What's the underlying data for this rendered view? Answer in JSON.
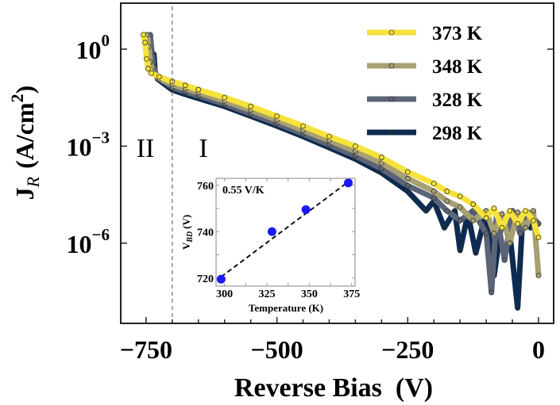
{
  "chart_data": [
    {
      "type": "line",
      "xlabel": "Reverse Bias  (V)",
      "ylabel": "J_R (A/cm^2)",
      "ylabel_parts": {
        "main": "J",
        "sub": "R",
        "units": "(A/cm",
        "sup": "2",
        "close": ")"
      },
      "xlim": [
        -775,
        30
      ],
      "ylim": [
        4e-09,
        25
      ],
      "yscale": "log",
      "xticks": [
        -750,
        -500,
        -250,
        0
      ],
      "xtick_labels": [
        "−750",
        "−500",
        "−250",
        "0"
      ],
      "yticks": [
        1,
        0.001,
        1e-06
      ],
      "ytick_labels": [
        {
          "base": "10",
          "exp": "0"
        },
        {
          "base": "10",
          "exp": "−3"
        },
        {
          "base": "10",
          "exp": "−6"
        }
      ],
      "legend_position": "top-right",
      "vline": {
        "x": -700,
        "style": "dashed",
        "color": "#8a8a8a"
      },
      "annotations": [
        "II",
        "I"
      ],
      "series": [
        {
          "name": "298 K",
          "color": "#0d2a50",
          "x": [
            -735,
            -733,
            -728,
            -700,
            -675,
            -650,
            -600,
            -550,
            -500,
            -450,
            -400,
            -350,
            -300,
            -250,
            -215,
            -200,
            -180,
            -160,
            -150,
            -135,
            -120,
            -100,
            -85,
            -70,
            -55,
            -40,
            -30,
            -15,
            0
          ],
          "y": [
            0.7,
            0.2,
            0.12,
            0.055,
            0.04,
            0.03,
            0.017,
            0.0085,
            0.0042,
            0.002,
            0.0009,
            0.0004,
            0.00015,
            4e-05,
            1e-05,
            2e-05,
            3e-06,
            1e-05,
            6e-07,
            8e-06,
            5e-07,
            9e-06,
            1e-07,
            5e-06,
            2e-06,
            1e-08,
            8e-06,
            3e-06,
            4e-06
          ]
        },
        {
          "name": "328 K",
          "color": "#5c6577",
          "x": [
            -742,
            -739,
            -736,
            -730,
            -700,
            -675,
            -650,
            -600,
            -550,
            -500,
            -450,
            -400,
            -350,
            -300,
            -250,
            -200,
            -175,
            -150,
            -125,
            -100,
            -90,
            -80,
            -65,
            -50,
            -35,
            -20,
            0
          ],
          "y": [
            2.8,
            0.8,
            0.3,
            0.15,
            0.065,
            0.048,
            0.036,
            0.02,
            0.01,
            0.005,
            0.0024,
            0.0011,
            0.0005,
            0.0002,
            6e-05,
            2.5e-05,
            1e-05,
            5e-06,
            1e-05,
            2e-06,
            3e-08,
            8e-06,
            3e-07,
            1e-05,
            2e-06,
            9e-06,
            4e-06
          ]
        },
        {
          "name": "348 K",
          "color": "#a89f72",
          "x": [
            -748,
            -745,
            -742,
            -738,
            -725,
            -700,
            -675,
            -650,
            -600,
            -550,
            -500,
            -450,
            -400,
            -350,
            -300,
            -250,
            -200,
            -175,
            -150,
            -125,
            -100,
            -85,
            -70,
            -55,
            -40,
            -25,
            -10,
            0
          ],
          "y": [
            2.8,
            1.2,
            0.4,
            0.2,
            0.12,
            0.08,
            0.06,
            0.045,
            0.025,
            0.013,
            0.0065,
            0.0031,
            0.0015,
            0.0007,
            0.0003,
            0.0001,
            4e-05,
            2e-05,
            1.3e-05,
            5e-06,
            1e-05,
            2e-06,
            8e-06,
            1e-06,
            9e-06,
            3e-06,
            1e-05,
            1e-07
          ]
        },
        {
          "name": "373 K",
          "color": "#f5e23a",
          "x": [
            -755,
            -752,
            -749,
            -746,
            -740,
            -725,
            -700,
            -675,
            -650,
            -600,
            -550,
            -500,
            -450,
            -400,
            -350,
            -300,
            -250,
            -200,
            -175,
            -150,
            -125,
            -100,
            -85,
            -70,
            -55,
            -40,
            -25,
            -10,
            0
          ],
          "y": [
            2.8,
            1.6,
            0.5,
            0.25,
            0.18,
            0.14,
            0.1,
            0.076,
            0.056,
            0.032,
            0.017,
            0.0085,
            0.0042,
            0.002,
            0.001,
            0.00045,
            0.00016,
            7e-05,
            4e-05,
            2.8e-05,
            1.6e-05,
            6e-06,
            1.2e-05,
            3e-06,
            1e-05,
            4e-06,
            1e-05,
            5e-06,
            1.5e-06
          ]
        }
      ],
      "legend_order": [
        "373 K",
        "348 K",
        "328 K",
        "298 K"
      ]
    },
    {
      "type": "scatter",
      "title": "",
      "xlabel": "Temperature (K)",
      "ylabel_parts": {
        "main": "V",
        "sub": "BD",
        "units": "(V)"
      },
      "xlim": [
        295,
        377
      ],
      "ylim": [
        716.5,
        763
      ],
      "xticks": [
        300,
        325,
        350,
        375
      ],
      "yticks": [
        720,
        740,
        760
      ],
      "annotation": "0.55 V/K",
      "marker_color": "#1a1aff",
      "x": [
        298,
        328,
        348,
        373
      ],
      "y": [
        719.5,
        740,
        749.5,
        761
      ],
      "fit_line": {
        "x": [
          298,
          373
        ],
        "y": [
          720.5,
          761.5
        ],
        "style": "dashed",
        "color": "#111111"
      }
    }
  ]
}
